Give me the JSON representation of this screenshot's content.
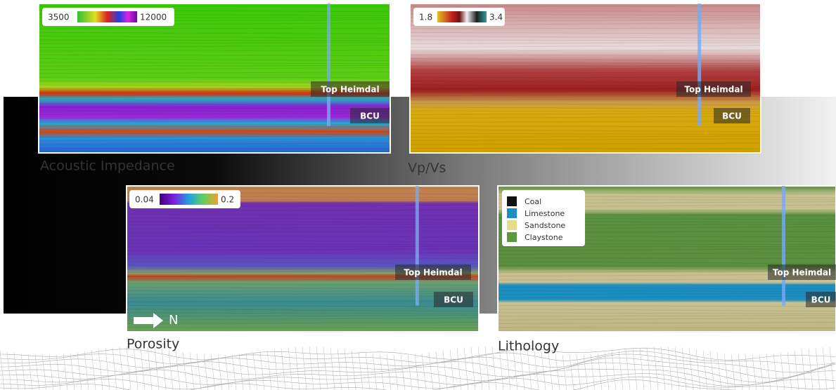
{
  "panels": [
    {
      "title": "Acoustic Impedance",
      "colorbar": {
        "min": "3500",
        "max": "12000"
      },
      "horizons": [
        "Top Heimdal",
        "BCU"
      ]
    },
    {
      "title": "Vp/Vs",
      "colorbar": {
        "min": "1.8",
        "max": "3.4"
      },
      "horizons": [
        "Top Heimdal",
        "BCU"
      ]
    },
    {
      "title": "Porosity",
      "colorbar": {
        "min": "0.04",
        "max": "0.2"
      },
      "horizons": [
        "Top Heimdal",
        "BCU"
      ],
      "north_label": "N"
    },
    {
      "title": "Lithology",
      "legend": [
        {
          "name": "Coal",
          "color": "#111111"
        },
        {
          "name": "Limestone",
          "color": "#1c8fc0"
        },
        {
          "name": "Sandstone",
          "color": "#e4dc8c"
        },
        {
          "name": "Claystone",
          "color": "#5a9a3c"
        }
      ],
      "horizons": [
        "Top Heimdal",
        "BCU"
      ]
    }
  ]
}
